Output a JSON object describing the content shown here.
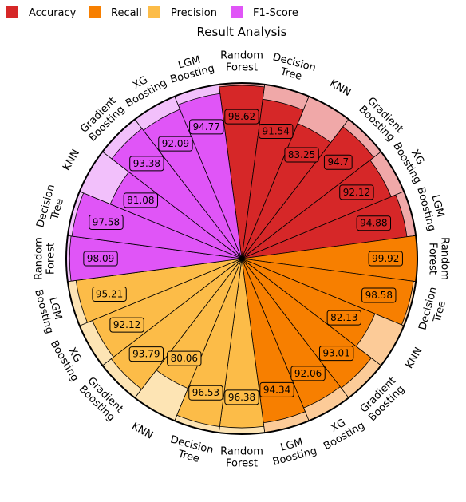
{
  "chart_data": {
    "type": "polar-bar",
    "title": "Result Analysis",
    "ylim": [
      0,
      100
    ],
    "legend_placement": "top",
    "categories": [
      "Random Forest",
      "Decision Tree",
      "KNN",
      "Gradient Boosting",
      "XG Boosting",
      "LGM Boosting"
    ],
    "series": [
      {
        "name": "Accuracy",
        "color": "#d62728",
        "bg": "#f0a8a8",
        "values": [
          98.62,
          91.54,
          83.25,
          94.7,
          92.12,
          94.88
        ]
      },
      {
        "name": "Recall",
        "color": "#f77f00",
        "bg": "#fccb98",
        "values": [
          99.92,
          98.58,
          82.13,
          93.01,
          92.06,
          94.34
        ]
      },
      {
        "name": "Precision",
        "color": "#fcbc48",
        "bg": "#fde4b4",
        "values": [
          96.38,
          96.53,
          80.06,
          93.79,
          92.12,
          95.21
        ]
      },
      {
        "name": "F1-Score",
        "color": "#e055f7",
        "bg": "#f2c0fb",
        "values": [
          98.09,
          97.58,
          81.08,
          93.38,
          92.09,
          94.77
        ]
      }
    ]
  }
}
